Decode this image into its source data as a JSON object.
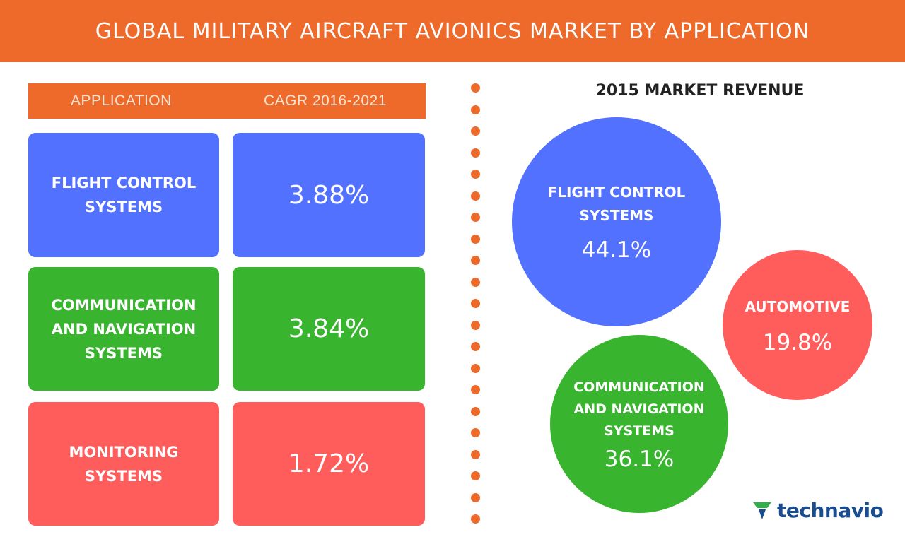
{
  "title": "GLOBAL MILITARY AIRCRAFT AVIONICS MARKET BY APPLICATION",
  "table": {
    "col_application": "APPLICATION",
    "col_cagr": "CAGR 2016-2021",
    "rows": [
      {
        "label": "FLIGHT CONTROL\nSYSTEMS",
        "cagr": "3.88%",
        "color": "#5271ff"
      },
      {
        "label": "COMMUNICATION\nAND NAVIGATION\nSYSTEMS",
        "cagr": "3.84%",
        "color": "#38b42f"
      },
      {
        "label": "MONITORING\nSYSTEMS",
        "cagr": "1.72%",
        "color": "#ff5c5c"
      }
    ]
  },
  "revenue": {
    "title": "2015 MARKET REVENUE",
    "bubbles": [
      {
        "label": "FLIGHT CONTROL\nSYSTEMS",
        "value": "44.1%",
        "color": "#5271ff"
      },
      {
        "label": "AUTOMOTIVE",
        "value": "19.8%",
        "color": "#ff5c5c"
      },
      {
        "label": "COMMUNICATION\nAND NAVIGATION\nSYSTEMS",
        "value": "36.1%",
        "color": "#38b42f"
      }
    ]
  },
  "chart_data": [
    {
      "type": "table",
      "columns": [
        "APPLICATION",
        "CAGR 2016-2021"
      ],
      "categories": [
        "FLIGHT CONTROL SYSTEMS",
        "COMMUNICATION AND NAVIGATION SYSTEMS",
        "MONITORING SYSTEMS"
      ],
      "values": [
        3.88,
        3.84,
        1.72
      ],
      "unit": "%"
    },
    {
      "type": "pie",
      "title": "2015 MARKET REVENUE",
      "categories": [
        "FLIGHT CONTROL SYSTEMS",
        "AUTOMOTIVE",
        "COMMUNICATION AND NAVIGATION SYSTEMS"
      ],
      "values": [
        44.1,
        19.8,
        36.1
      ],
      "unit": "%"
    }
  ],
  "logo": {
    "text": "technavio",
    "color": "#1a4d8f",
    "mark_color": "#2fae4a"
  },
  "accent_color": "#ee6a2a"
}
